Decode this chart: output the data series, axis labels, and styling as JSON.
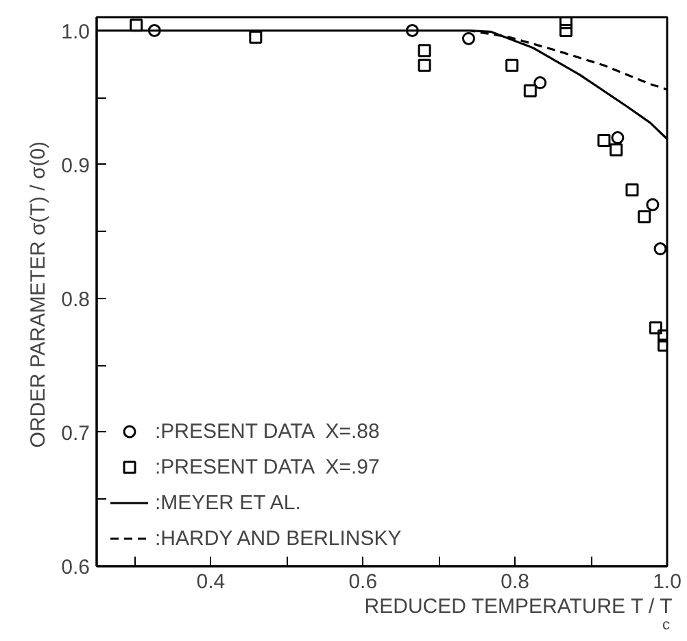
{
  "chart_data": {
    "type": "scatter",
    "xlabel": "REDUCED TEMPERATURE  T / T$_{c}$",
    "ylabel": "ORDER PARAMETER  σ(T) / σ(0)",
    "xlim": [
      0.25,
      1.0
    ],
    "ylim": [
      0.6,
      1.01
    ],
    "xticks": [
      {
        "value": 0.3,
        "label": null
      },
      0.4,
      {
        "value": 0.5,
        "label": null
      },
      0.6,
      {
        "value": 0.7,
        "label": null
      },
      0.8,
      {
        "value": 0.9,
        "label": null
      },
      {
        "value": 1.0,
        "label": "1.0"
      }
    ],
    "yticks": [
      0.6,
      {
        "value": 0.65,
        "label": null
      },
      0.7,
      {
        "value": 0.75,
        "label": null
      },
      0.8,
      {
        "value": 0.85,
        "label": null
      },
      0.9,
      {
        "value": 0.95,
        "label": null
      },
      {
        "value": 1.0,
        "label": "1.0"
      }
    ],
    "grid": false,
    "legend": "bottom left",
    "series": [
      {
        "name": ":PRESENT DATA  X=.88",
        "marker": "circle",
        "color": "#000000",
        "x": [
          0.326,
          0.665,
          0.739,
          0.833,
          0.935,
          0.981,
          0.991
        ],
        "values": [
          1.0,
          1.0,
          0.994,
          0.961,
          0.92,
          0.87,
          0.837
        ]
      },
      {
        "name": ":PRESENT DATA  X=.97",
        "marker": "square",
        "color": "#000000",
        "x": [
          0.302,
          0.459,
          0.681,
          0.681,
          0.796,
          0.82,
          0.867,
          0.867,
          0.917,
          0.933,
          0.954,
          0.97,
          0.985,
          0.996,
          0.996
        ],
        "values": [
          1.004,
          0.995,
          0.985,
          0.974,
          0.974,
          0.955,
          1.006,
          1.0,
          0.918,
          0.911,
          0.881,
          0.861,
          0.778,
          0.772,
          0.765
        ]
      },
      {
        "name": ":MEYER ET AL.",
        "type": "line",
        "line_style": "solid",
        "color": "#000000",
        "x": [
          0.25,
          0.74,
          0.769,
          0.824,
          0.885,
          0.948,
          0.978,
          1.0
        ],
        "values": [
          1.0,
          1.0,
          0.999,
          0.987,
          0.967,
          0.943,
          0.931,
          0.919
        ]
      },
      {
        "name": ":HARDY AND BERLINSKY",
        "type": "line",
        "line_style": "dashed",
        "color": "#000000",
        "x": [
          0.25,
          0.74,
          0.793,
          0.855,
          0.917,
          0.978,
          1.0
        ],
        "values": [
          1.0,
          1.0,
          0.995,
          0.985,
          0.974,
          0.96,
          0.956
        ]
      }
    ]
  }
}
